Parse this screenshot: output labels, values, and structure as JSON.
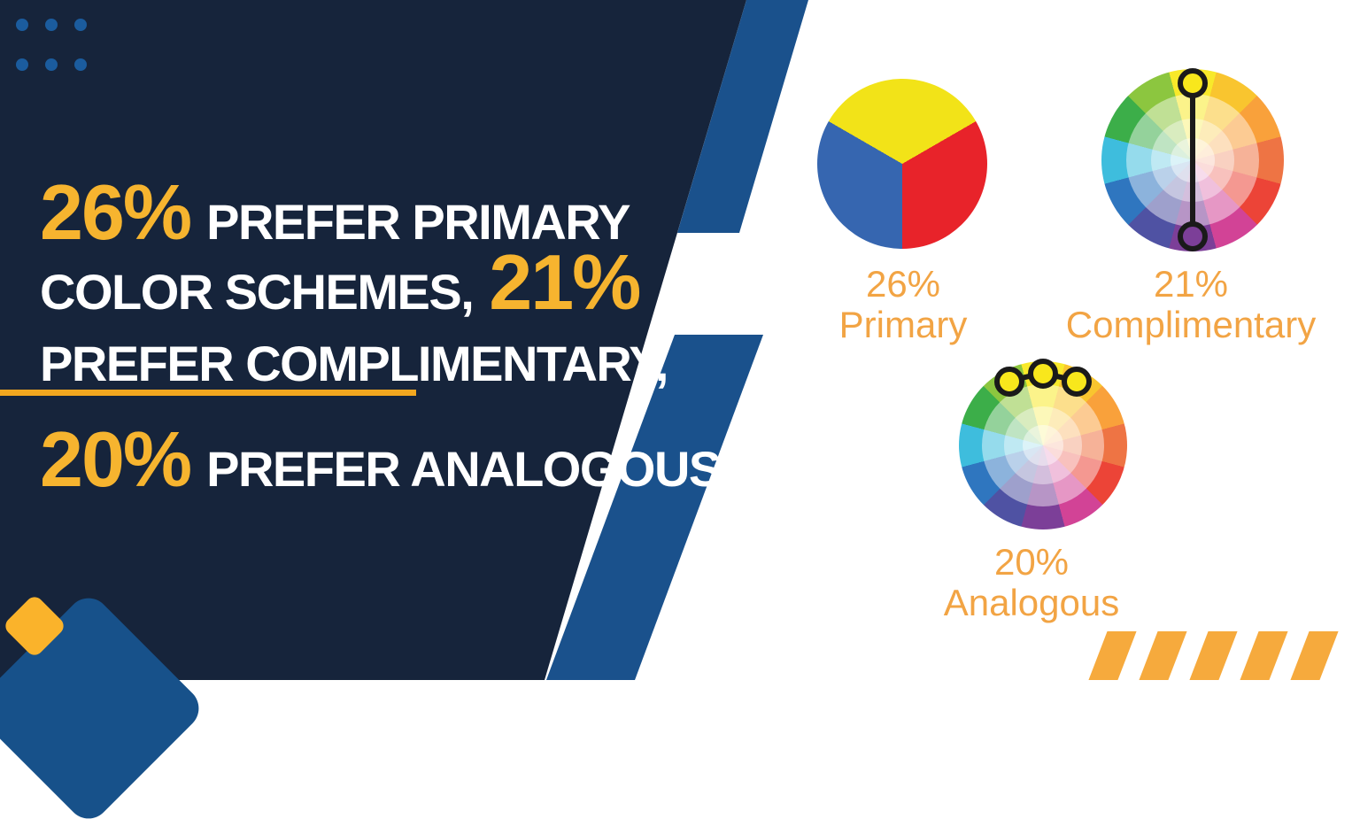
{
  "meta": {
    "title": "Color scheme preference infographic"
  },
  "headline": {
    "line1_number": "26%",
    "line1_text": "PREFER PRIMARY",
    "line2_text": "COLOR SCHEMES,",
    "line2_number": "21%",
    "line3_text": "PREFER COMPLIMENTARY,",
    "line4_number": "20%",
    "line4_text": "PREFER ANALOGOUS"
  },
  "figures": {
    "primary": {
      "percent": "26%",
      "name": "Primary"
    },
    "complementary": {
      "percent": "21%",
      "name": "Complimentary"
    },
    "analogous": {
      "percent": "20%",
      "name": "Analogous"
    }
  },
  "chart_data": {
    "type": "pie",
    "title": "26% prefer primary color schemes, 21% prefer complimentary, 20% prefer analogous",
    "slices": [
      {
        "label": "Primary",
        "value": 26
      },
      {
        "label": "Complimentary",
        "value": 21
      },
      {
        "label": "Analogous",
        "value": 20
      }
    ],
    "notes": "Each figure is a color-wheel glyph: primary = pie of yellow/red/blue thirds; complementary = 12-segment wheel with vertical connector from yellow (top) to violet (bottom); analogous = 12-segment wheel with three linked markers on yellow-green, yellow, yellow-orange."
  },
  "palette": {
    "navy_background": "#16243B",
    "accent_blue": "#1A518C",
    "dot_blue": "#1B5C9E",
    "headline_yellow": "#F6B42F",
    "headline_white": "#FFFFFF",
    "divider_amber": "#F2A71F",
    "label_amber": "#F2A444",
    "hazard_amber": "#F6AA3D",
    "diamond_yellow": "#FAB32B",
    "diamond_blue": "#17518A",
    "marker_yellow": "#F8E71C",
    "marker_violet": "#7C3F98",
    "pie_colors": {
      "yellow": "#F2E318",
      "red": "#E8232A",
      "blue": "#3666B0"
    },
    "wheel_segments": [
      "#F8E92A",
      "#F9C52F",
      "#F9A13B",
      "#EE7444",
      "#EC4437",
      "#D24396",
      "#7C3F98",
      "#4F52A3",
      "#2F76BF",
      "#3EBDDD",
      "#3CAE49",
      "#8CC63F"
    ]
  }
}
